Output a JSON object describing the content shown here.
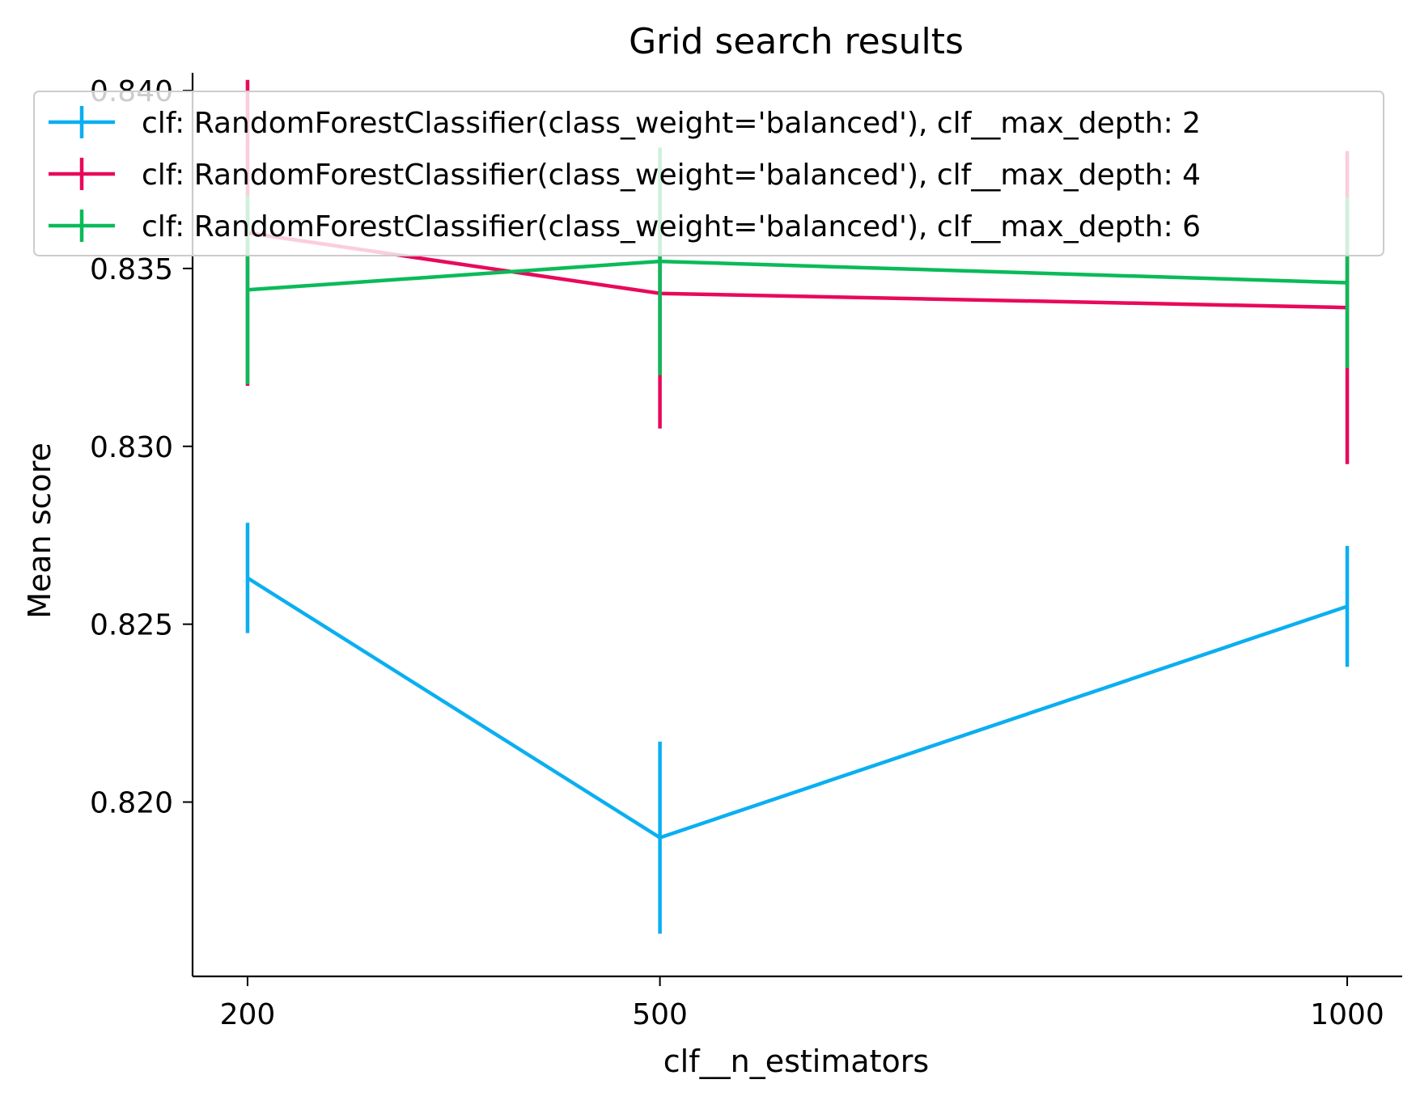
{
  "chart_data": {
    "type": "line",
    "title": "Grid search results",
    "xlabel": "clf__n_estimators",
    "ylabel": "Mean score",
    "x": [
      200,
      500,
      1000
    ],
    "x_tick_labels": [
      "200",
      "500",
      "1000"
    ],
    "y_ticks": [
      0.82,
      0.825,
      0.83,
      0.835,
      0.84
    ],
    "y_tick_labels": [
      "0.820",
      "0.825",
      "0.830",
      "0.835",
      "0.840"
    ],
    "ylim": [
      0.8151,
      0.8405
    ],
    "xlim": [
      160,
      1040
    ],
    "grid": false,
    "legend_placement": "top",
    "series": [
      {
        "name": "clf: RandomForestClassifier(class_weight='balanced'), clf__max_depth: 2",
        "color": "#0aaff1",
        "values": [
          0.8263,
          0.819,
          0.8255
        ],
        "errors": [
          0.00155,
          0.0027,
          0.0017
        ]
      },
      {
        "name": "clf: RandomForestClassifier(class_weight='balanced'), clf__max_depth: 4",
        "color": "#e8095a",
        "values": [
          0.836,
          0.8343,
          0.8339
        ],
        "errors": [
          0.0043,
          0.0038,
          0.0044
        ]
      },
      {
        "name": "clf: RandomForestClassifier(class_weight='balanced'), clf__max_depth: 6",
        "color": "#0abb59",
        "values": [
          0.8344,
          0.8352,
          0.8346
        ],
        "errors": [
          0.00265,
          0.0032,
          0.0024
        ]
      }
    ]
  }
}
